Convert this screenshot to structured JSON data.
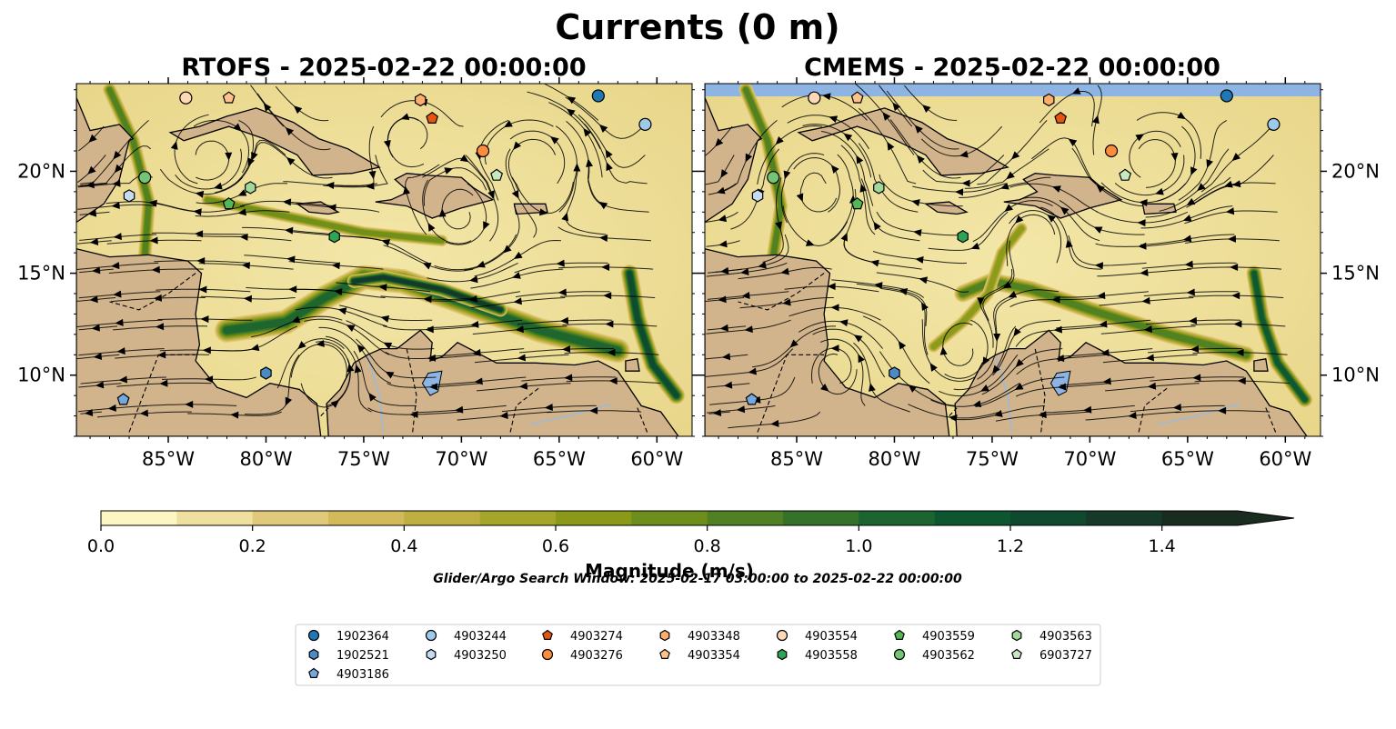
{
  "figure": {
    "title": "Currents (0 m)",
    "search_window": "Glider/Argo Search Window: 2025-02-17 03:00:00 to 2025-02-22 00:00:00"
  },
  "panels": [
    {
      "id": "rtofs",
      "title": "RTOFS - 2025-02-22 00:00:00",
      "model": "rtofs"
    },
    {
      "id": "cmems",
      "title": "CMEMS - 2025-02-22 00:00:00",
      "model": "cmems"
    }
  ],
  "axes": {
    "lon_range": [
      -89.7,
      -58.2
    ],
    "lat_range": [
      7.0,
      24.3
    ],
    "lon_ticks": [
      -85,
      -80,
      -75,
      -70,
      -65,
      -60
    ],
    "lon_labels": [
      "85°W",
      "80°W",
      "75°W",
      "70°W",
      "65°W",
      "60°W"
    ],
    "lat_ticks": [
      10,
      15,
      20
    ],
    "lat_labels": [
      "10°N",
      "15°N",
      "20°N"
    ]
  },
  "colors": {
    "land": "#d2b48c",
    "lake": "#8eb4e3",
    "coast": "#000000",
    "levels": [
      "#fcf6c3",
      "#efe09f",
      "#e0c97a",
      "#d2b95a",
      "#bfae40",
      "#a5a52a",
      "#8a9a18",
      "#6d8e1c",
      "#4f8024",
      "#337228",
      "#1c6530",
      "#0e5630",
      "#104a2e",
      "#16392a",
      "#1a2c20"
    ]
  },
  "colorbar": {
    "min": 0.0,
    "max": 1.5,
    "step": 0.1,
    "extend": "max",
    "ticks": [
      0.0,
      0.2,
      0.4,
      0.6,
      0.8,
      1.0,
      1.2,
      1.4
    ],
    "tick_labels": [
      "0.0",
      "0.2",
      "0.4",
      "0.6",
      "0.8",
      "1.0",
      "1.2",
      "1.4"
    ],
    "label": "Magnitude (m/s)"
  },
  "platforms": [
    {
      "id": "1902364",
      "marker": "circle",
      "color": "#1f77b4",
      "lon": -63.0,
      "lat": 23.7
    },
    {
      "id": "1902521",
      "marker": "hexagon",
      "color": "#4a8bc4",
      "lon": -80.0,
      "lat": 10.1
    },
    {
      "id": "4903186",
      "marker": "pentagon",
      "color": "#74a9e0",
      "lon": -87.3,
      "lat": 8.8
    },
    {
      "id": "4903244",
      "marker": "circle",
      "color": "#9ecae9",
      "lon": -60.6,
      "lat": 22.3
    },
    {
      "id": "4903250",
      "marker": "hexagon",
      "color": "#c6dbef",
      "lon": -87.0,
      "lat": 18.8
    },
    {
      "id": "4903274",
      "marker": "pentagon",
      "color": "#e6550d",
      "lon": -71.5,
      "lat": 22.6
    },
    {
      "id": "4903276",
      "marker": "circle",
      "color": "#fd8d3c",
      "lon": -68.9,
      "lat": 21.0
    },
    {
      "id": "4903348",
      "marker": "hexagon",
      "color": "#fdae6b",
      "lon": -72.1,
      "lat": 23.5
    },
    {
      "id": "4903354",
      "marker": "pentagon",
      "color": "#fdc38d",
      "lon": -81.9,
      "lat": 23.6
    },
    {
      "id": "4903554",
      "marker": "circle",
      "color": "#fdd9b8",
      "lon": -84.1,
      "lat": 23.6
    },
    {
      "id": "4903558",
      "marker": "hexagon",
      "color": "#31a354",
      "lon": -76.5,
      "lat": 16.8
    },
    {
      "id": "4903559",
      "marker": "pentagon",
      "color": "#55b655",
      "lon": -81.9,
      "lat": 18.4
    },
    {
      "id": "4903562",
      "marker": "circle",
      "color": "#74c476",
      "lon": -86.2,
      "lat": 19.7
    },
    {
      "id": "4903563",
      "marker": "hexagon",
      "color": "#a1d99b",
      "lon": -80.8,
      "lat": 19.2
    },
    {
      "id": "6903727",
      "marker": "pentagon",
      "color": "#c7e9c0",
      "lon": -68.2,
      "lat": 19.8
    }
  ]
}
